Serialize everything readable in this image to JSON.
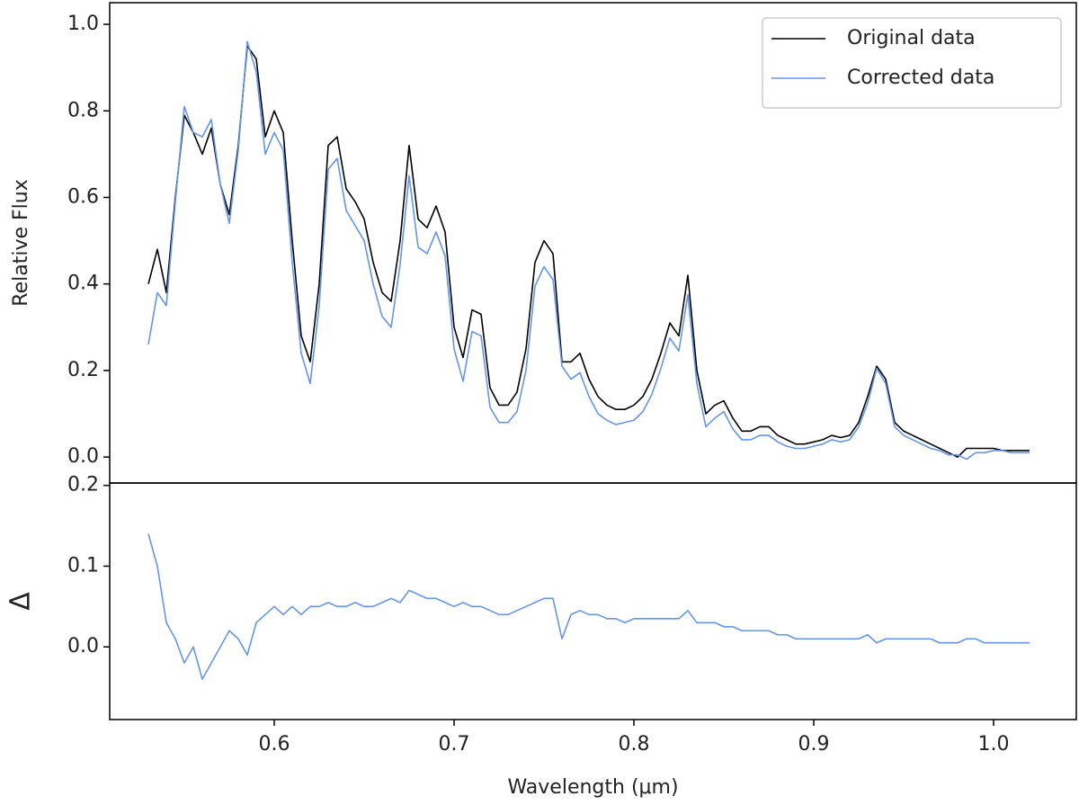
{
  "chart_data": [
    {
      "type": "line",
      "ylabel": "Relative Flux",
      "x": [
        0.53,
        0.535,
        0.54,
        0.545,
        0.55,
        0.555,
        0.56,
        0.565,
        0.57,
        0.575,
        0.58,
        0.585,
        0.59,
        0.595,
        0.6,
        0.605,
        0.61,
        0.615,
        0.62,
        0.625,
        0.63,
        0.635,
        0.64,
        0.645,
        0.65,
        0.655,
        0.66,
        0.665,
        0.67,
        0.675,
        0.68,
        0.685,
        0.69,
        0.695,
        0.7,
        0.705,
        0.71,
        0.715,
        0.72,
        0.725,
        0.73,
        0.735,
        0.74,
        0.745,
        0.75,
        0.755,
        0.76,
        0.765,
        0.77,
        0.775,
        0.78,
        0.785,
        0.79,
        0.795,
        0.8,
        0.805,
        0.81,
        0.815,
        0.82,
        0.825,
        0.83,
        0.835,
        0.84,
        0.845,
        0.85,
        0.855,
        0.86,
        0.865,
        0.87,
        0.875,
        0.88,
        0.885,
        0.89,
        0.895,
        0.9,
        0.905,
        0.91,
        0.915,
        0.92,
        0.925,
        0.93,
        0.935,
        0.94,
        0.945,
        0.95,
        0.955,
        0.96,
        0.965,
        0.97,
        0.975,
        0.98,
        0.985,
        0.99,
        0.995,
        1.0,
        1.005,
        1.01,
        1.015,
        1.02
      ],
      "series": [
        {
          "name": "Original data",
          "color": "#000000",
          "values": [
            0.4,
            0.48,
            0.38,
            0.6,
            0.79,
            0.75,
            0.7,
            0.76,
            0.63,
            0.56,
            0.72,
            0.95,
            0.92,
            0.74,
            0.8,
            0.75,
            0.5,
            0.28,
            0.22,
            0.4,
            0.72,
            0.74,
            0.62,
            0.59,
            0.55,
            0.45,
            0.38,
            0.36,
            0.5,
            0.72,
            0.55,
            0.53,
            0.58,
            0.52,
            0.3,
            0.23,
            0.34,
            0.33,
            0.16,
            0.12,
            0.12,
            0.15,
            0.25,
            0.45,
            0.5,
            0.47,
            0.22,
            0.22,
            0.24,
            0.18,
            0.14,
            0.12,
            0.11,
            0.11,
            0.12,
            0.14,
            0.18,
            0.24,
            0.31,
            0.28,
            0.42,
            0.2,
            0.1,
            0.12,
            0.13,
            0.09,
            0.06,
            0.06,
            0.07,
            0.07,
            0.05,
            0.04,
            0.03,
            0.03,
            0.035,
            0.04,
            0.05,
            0.045,
            0.05,
            0.08,
            0.14,
            0.21,
            0.18,
            0.08,
            0.06,
            0.05,
            0.04,
            0.03,
            0.02,
            0.01,
            0.0,
            0.02,
            0.02,
            0.02,
            0.02,
            0.015,
            0.015,
            0.015,
            0.015
          ]
        },
        {
          "name": "Corrected data",
          "color": "#6495ed",
          "values": [
            0.26,
            0.38,
            0.35,
            0.59,
            0.81,
            0.75,
            0.74,
            0.78,
            0.63,
            0.54,
            0.71,
            0.96,
            0.89,
            0.7,
            0.75,
            0.71,
            0.45,
            0.24,
            0.17,
            0.35,
            0.665,
            0.69,
            0.57,
            0.535,
            0.5,
            0.4,
            0.325,
            0.3,
            0.445,
            0.65,
            0.485,
            0.47,
            0.52,
            0.465,
            0.25,
            0.175,
            0.29,
            0.28,
            0.115,
            0.08,
            0.08,
            0.105,
            0.2,
            0.395,
            0.44,
            0.41,
            0.21,
            0.18,
            0.195,
            0.14,
            0.1,
            0.085,
            0.075,
            0.08,
            0.085,
            0.105,
            0.145,
            0.205,
            0.275,
            0.245,
            0.375,
            0.17,
            0.07,
            0.09,
            0.105,
            0.065,
            0.04,
            0.04,
            0.05,
            0.05,
            0.035,
            0.025,
            0.02,
            0.02,
            0.025,
            0.03,
            0.04,
            0.035,
            0.04,
            0.07,
            0.125,
            0.205,
            0.17,
            0.07,
            0.05,
            0.04,
            0.03,
            0.02,
            0.015,
            0.005,
            0.005,
            -0.005,
            0.01,
            0.01,
            0.015,
            0.015,
            0.01,
            0.01,
            0.01
          ]
        }
      ],
      "xlim": [
        0.5085,
        1.046
      ],
      "ylim": [
        -0.06,
        1.05
      ],
      "yticks": [
        {
          "value": 0,
          "label": "0.0"
        },
        0.2,
        0.4,
        0.6,
        0.8,
        {
          "value": 1,
          "label": "1.0"
        }
      ],
      "legend": "upper right"
    },
    {
      "type": "line",
      "ylabel": "Δ",
      "xlabel": "Wavelength (μm)",
      "x": [
        0.53,
        0.535,
        0.54,
        0.545,
        0.55,
        0.555,
        0.56,
        0.565,
        0.57,
        0.575,
        0.58,
        0.585,
        0.59,
        0.595,
        0.6,
        0.605,
        0.61,
        0.615,
        0.62,
        0.625,
        0.63,
        0.635,
        0.64,
        0.645,
        0.65,
        0.655,
        0.66,
        0.665,
        0.67,
        0.675,
        0.68,
        0.685,
        0.69,
        0.695,
        0.7,
        0.705,
        0.71,
        0.715,
        0.72,
        0.725,
        0.73,
        0.735,
        0.74,
        0.745,
        0.75,
        0.755,
        0.76,
        0.765,
        0.77,
        0.775,
        0.78,
        0.785,
        0.79,
        0.795,
        0.8,
        0.805,
        0.81,
        0.815,
        0.82,
        0.825,
        0.83,
        0.835,
        0.84,
        0.845,
        0.85,
        0.855,
        0.86,
        0.865,
        0.87,
        0.875,
        0.88,
        0.885,
        0.89,
        0.895,
        0.9,
        0.905,
        0.91,
        0.915,
        0.92,
        0.925,
        0.93,
        0.935,
        0.94,
        0.945,
        0.95,
        0.955,
        0.96,
        0.965,
        0.97,
        0.975,
        0.98,
        0.985,
        0.99,
        0.995,
        1.0,
        1.005,
        1.01,
        1.015,
        1.02
      ],
      "series": [
        {
          "color": "#6495ed",
          "values": [
            0.14,
            0.1,
            0.03,
            0.01,
            -0.02,
            0.0,
            -0.04,
            -0.02,
            0.0,
            0.02,
            0.01,
            -0.01,
            0.03,
            0.04,
            0.05,
            0.04,
            0.05,
            0.04,
            0.05,
            0.05,
            0.055,
            0.05,
            0.05,
            0.055,
            0.05,
            0.05,
            0.055,
            0.06,
            0.055,
            0.07,
            0.065,
            0.06,
            0.06,
            0.055,
            0.05,
            0.055,
            0.05,
            0.05,
            0.045,
            0.04,
            0.04,
            0.045,
            0.05,
            0.055,
            0.06,
            0.06,
            0.01,
            0.04,
            0.045,
            0.04,
            0.04,
            0.035,
            0.035,
            0.03,
            0.035,
            0.035,
            0.035,
            0.035,
            0.035,
            0.035,
            0.045,
            0.03,
            0.03,
            0.03,
            0.025,
            0.025,
            0.02,
            0.02,
            0.02,
            0.02,
            0.015,
            0.015,
            0.01,
            0.01,
            0.01,
            0.01,
            0.01,
            0.01,
            0.01,
            0.01,
            0.015,
            0.005,
            0.01,
            0.01,
            0.01,
            0.01,
            0.01,
            0.01,
            0.005,
            0.005,
            0.005,
            0.01,
            0.01,
            0.005,
            0.005,
            0.005,
            0.005,
            0.005,
            0.005
          ]
        }
      ],
      "xlim": [
        0.5085,
        1.046
      ],
      "ylim": [
        -0.09,
        0.203
      ],
      "xticks": [
        0.6,
        0.7,
        0.8,
        0.9,
        {
          "value": 1,
          "label": "1.0"
        }
      ],
      "yticks": [
        {
          "value": 0,
          "label": "0.0"
        },
        0.1,
        0.2
      ]
    }
  ]
}
